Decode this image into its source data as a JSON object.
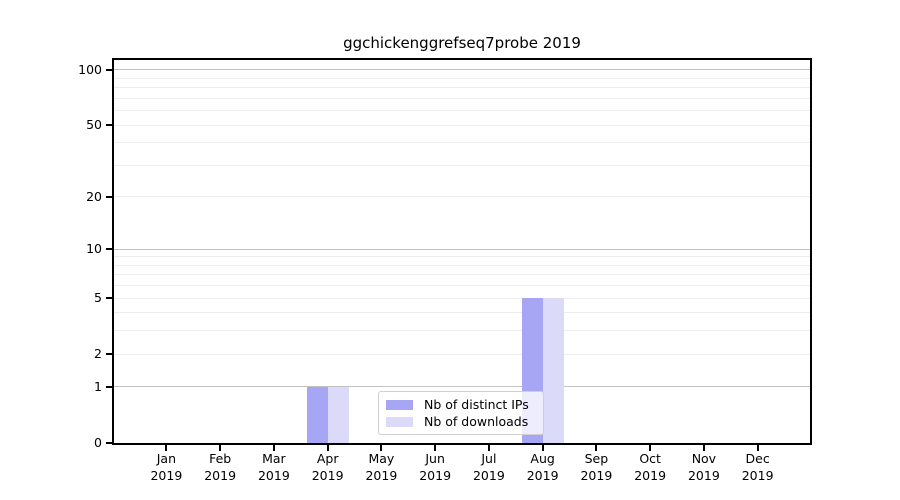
{
  "chart_data": {
    "type": "bar",
    "title": "ggchickenggrefseq7probe 2019",
    "categories": [
      {
        "month": "Jan",
        "year": "2019"
      },
      {
        "month": "Feb",
        "year": "2019"
      },
      {
        "month": "Mar",
        "year": "2019"
      },
      {
        "month": "Apr",
        "year": "2019"
      },
      {
        "month": "May",
        "year": "2019"
      },
      {
        "month": "Jun",
        "year": "2019"
      },
      {
        "month": "Jul",
        "year": "2019"
      },
      {
        "month": "Aug",
        "year": "2019"
      },
      {
        "month": "Sep",
        "year": "2019"
      },
      {
        "month": "Oct",
        "year": "2019"
      },
      {
        "month": "Nov",
        "year": "2019"
      },
      {
        "month": "Dec",
        "year": "2019"
      }
    ],
    "series": [
      {
        "name": "Nb of distinct IPs",
        "color": "#a6a6f4",
        "values": [
          0,
          0,
          0,
          1,
          0,
          0,
          0,
          5,
          0,
          0,
          0,
          0
        ]
      },
      {
        "name": "Nb of downloads",
        "color": "#dbdbf9",
        "values": [
          0,
          0,
          0,
          1,
          0,
          0,
          0,
          5,
          0,
          0,
          0,
          0
        ]
      }
    ],
    "y_axis": {
      "scale": "log1p",
      "ticks": [
        0,
        1,
        2,
        5,
        10,
        20,
        50,
        100
      ],
      "ylim": [
        0,
        112
      ],
      "major_gridlines": [
        1,
        10,
        100
      ],
      "minor_gridlines": [
        2,
        3,
        4,
        5,
        6,
        7,
        8,
        9,
        20,
        30,
        40,
        50,
        60,
        70,
        80,
        90
      ]
    },
    "xlabel": "",
    "ylabel": "",
    "grid": true,
    "legend_position": "lower center"
  },
  "colors": {
    "grid_major": "#c2c2c2",
    "grid_minor": "#ededed",
    "axis": "#000000",
    "background": "#ffffff"
  }
}
